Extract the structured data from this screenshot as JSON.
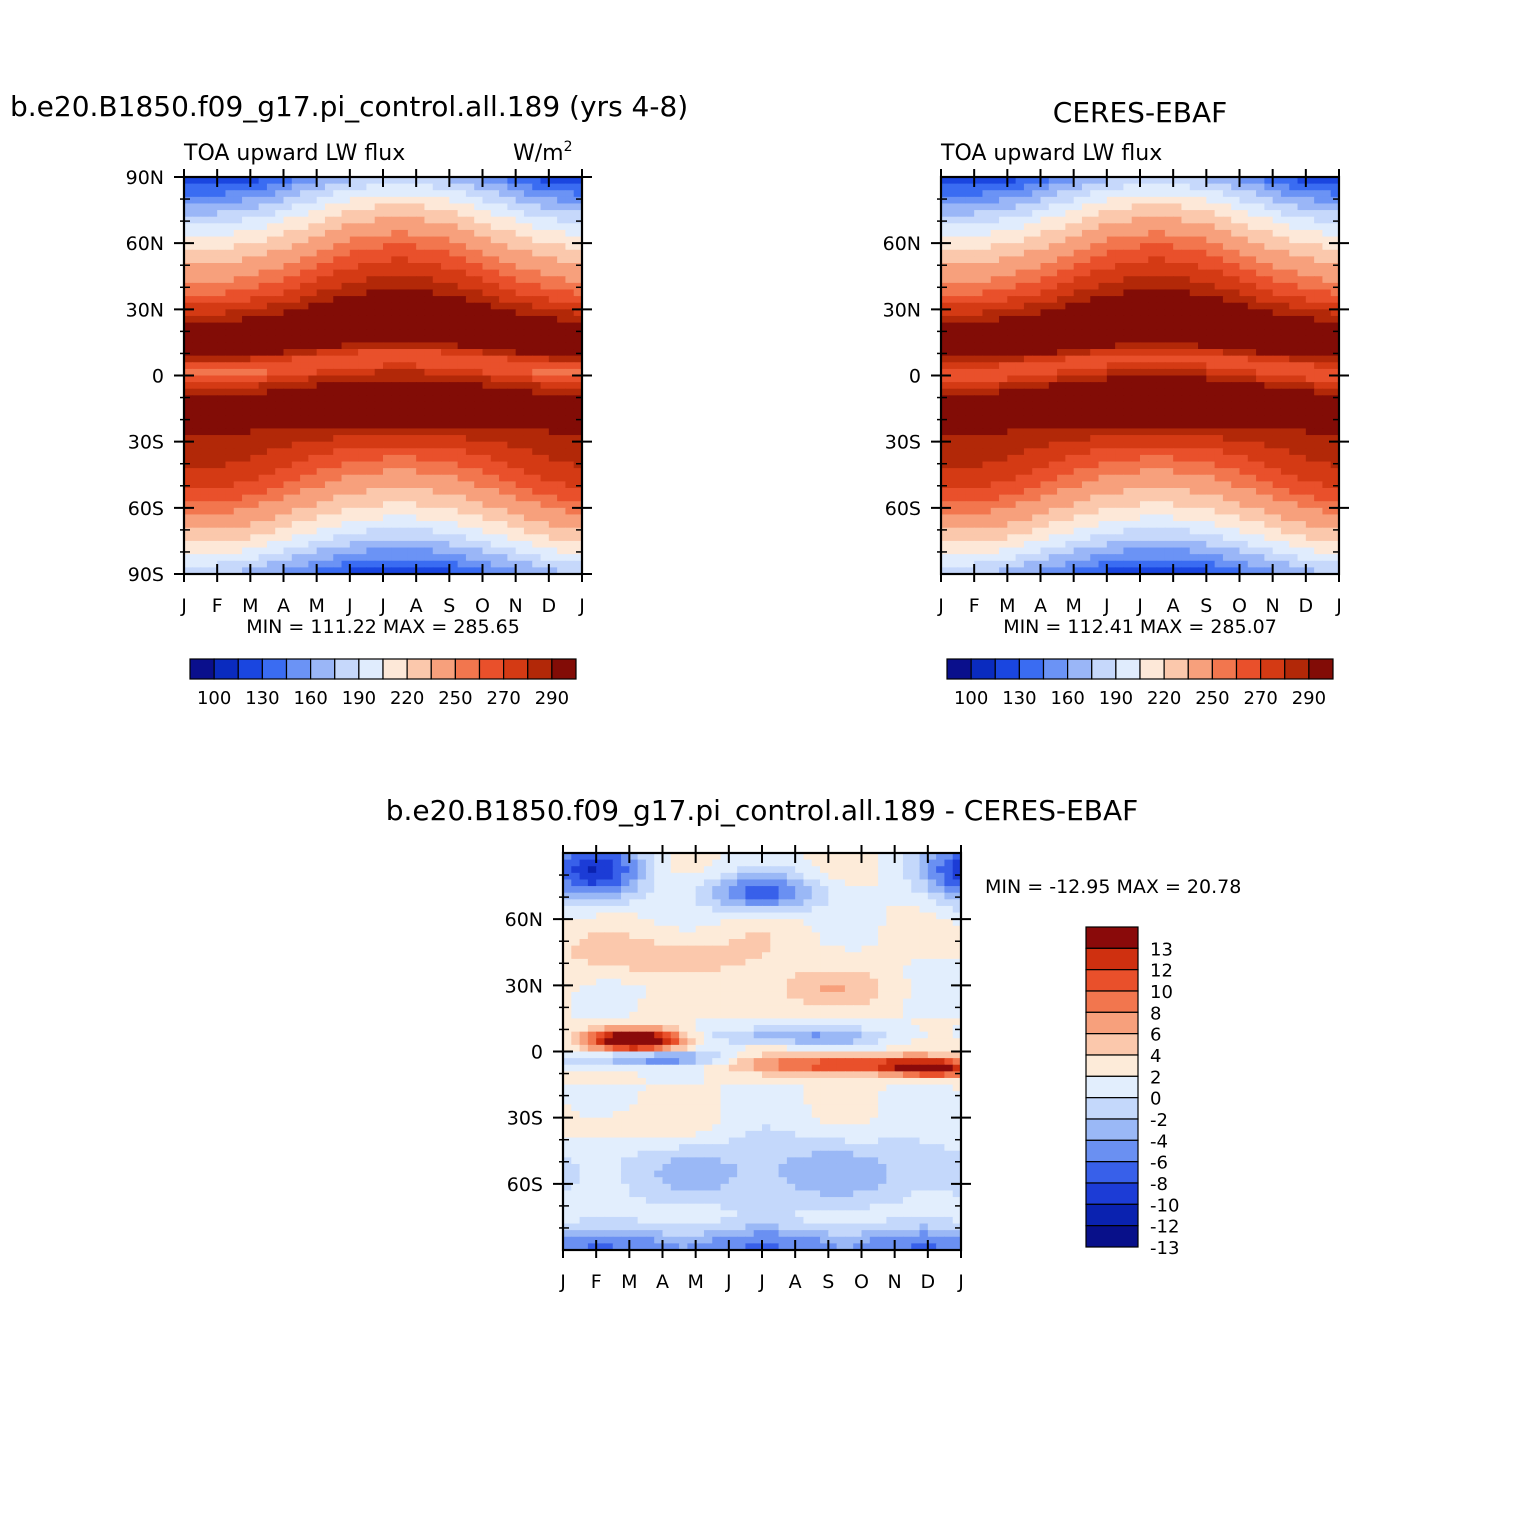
{
  "colors": {
    "main_scale": [
      "#0a0f8c",
      "#0a2bbf",
      "#1a46e0",
      "#3a6cf2",
      "#6b93f5",
      "#9ab6f7",
      "#c6d8fb",
      "#e0ecfd",
      "#fde8d8",
      "#fbc8ac",
      "#f7a07c",
      "#f2764e",
      "#e9502b",
      "#d43a14",
      "#b22808",
      "#820c06"
    ],
    "diff_scale": [
      "#08108a",
      "#0a22b0",
      "#1c3cd6",
      "#3860ea",
      "#6a90f2",
      "#9ab8f6",
      "#c4d8fb",
      "#e2eefd",
      "#fdebd9",
      "#fbc8ac",
      "#f7a07c",
      "#f2764e",
      "#e9502b",
      "#cf3010",
      "#8a0a0a"
    ]
  },
  "panels": [
    {
      "id": "model",
      "title": "b.e20.B1850.f09_g17.pi_control.all.189 (yrs 4-8)",
      "left_label": "TOA upward LW flux",
      "units_label": "W/m",
      "units_exp": "2",
      "minmax": "MIN = 111.22 MAX = 285.65",
      "ylabels": [
        "90N",
        "60N",
        "30N",
        "0",
        "30S",
        "60S",
        "90S"
      ],
      "lat_ticks": [
        90,
        60,
        30,
        0,
        -30,
        -60,
        -90
      ],
      "months": [
        "J",
        "F",
        "M",
        "A",
        "M",
        "J",
        "J",
        "A",
        "S",
        "O",
        "N",
        "D",
        "J"
      ],
      "colorbar_labels": [
        "100",
        "130",
        "160",
        "190",
        "220",
        "250",
        "270",
        "290"
      ]
    },
    {
      "id": "obs",
      "title": "CERES-EBAF",
      "left_label": "TOA upward LW flux",
      "minmax": "MIN = 112.41 MAX = 285.07",
      "ylabels": [
        "60N",
        "30N",
        "0",
        "30S",
        "60S"
      ],
      "lat_ticks": [
        60,
        30,
        0,
        -30,
        -60
      ],
      "months": [
        "J",
        "F",
        "M",
        "A",
        "M",
        "J",
        "J",
        "A",
        "S",
        "O",
        "N",
        "D",
        "J"
      ],
      "colorbar_labels": [
        "100",
        "130",
        "160",
        "190",
        "220",
        "250",
        "270",
        "290"
      ]
    },
    {
      "id": "diff",
      "title": "b.e20.B1850.f09_g17.pi_control.all.189 - CERES-EBAF",
      "minmax": "MIN = -12.95 MAX =  20.78",
      "ylabels": [
        "60N",
        "30N",
        "0",
        "30S",
        "60S"
      ],
      "lat_ticks": [
        60,
        30,
        0,
        -30,
        -60
      ],
      "months": [
        "J",
        "F",
        "M",
        "A",
        "M",
        "J",
        "J",
        "A",
        "S",
        "O",
        "N",
        "D",
        "J"
      ],
      "colorbar_labels": [
        "13",
        "12",
        "10",
        "8",
        "6",
        "4",
        "2",
        "0",
        "-2",
        "-4",
        "-6",
        "-8",
        "-10",
        "-12",
        "-13"
      ]
    }
  ],
  "chart_data": [
    {
      "type": "heatmap",
      "title": "b.e20.B1850.f09_g17.pi_control.all.189 (yrs 4-8)",
      "variable": "TOA upward LW flux",
      "units": "W/m2",
      "x": [
        "J",
        "F",
        "M",
        "A",
        "M",
        "J",
        "J",
        "A",
        "S",
        "O",
        "N",
        "D",
        "J"
      ],
      "y_range": [
        -90,
        90
      ],
      "min": 111.22,
      "max": 285.65,
      "contour_levels": [
        100,
        115,
        130,
        145,
        160,
        175,
        190,
        205,
        220,
        235,
        250,
        260,
        270,
        280,
        290
      ]
    },
    {
      "type": "heatmap",
      "title": "CERES-EBAF",
      "variable": "TOA upward LW flux",
      "units": "W/m2",
      "x": [
        "J",
        "F",
        "M",
        "A",
        "M",
        "J",
        "J",
        "A",
        "S",
        "O",
        "N",
        "D",
        "J"
      ],
      "y_range": [
        -90,
        90
      ],
      "min": 112.41,
      "max": 285.07,
      "contour_levels": [
        100,
        115,
        130,
        145,
        160,
        175,
        190,
        205,
        220,
        235,
        250,
        260,
        270,
        280,
        290
      ]
    },
    {
      "type": "heatmap",
      "title": "b.e20.B1850.f09_g17.pi_control.all.189 - CERES-EBAF",
      "units": "W/m2",
      "x": [
        "J",
        "F",
        "M",
        "A",
        "M",
        "J",
        "J",
        "A",
        "S",
        "O",
        "N",
        "D",
        "J"
      ],
      "y_range": [
        -90,
        90
      ],
      "min": -12.95,
      "max": 20.78,
      "contour_levels": [
        -13,
        -12,
        -10,
        -8,
        -6,
        -4,
        -2,
        0,
        2,
        4,
        6,
        8,
        10,
        12,
        13
      ]
    }
  ]
}
